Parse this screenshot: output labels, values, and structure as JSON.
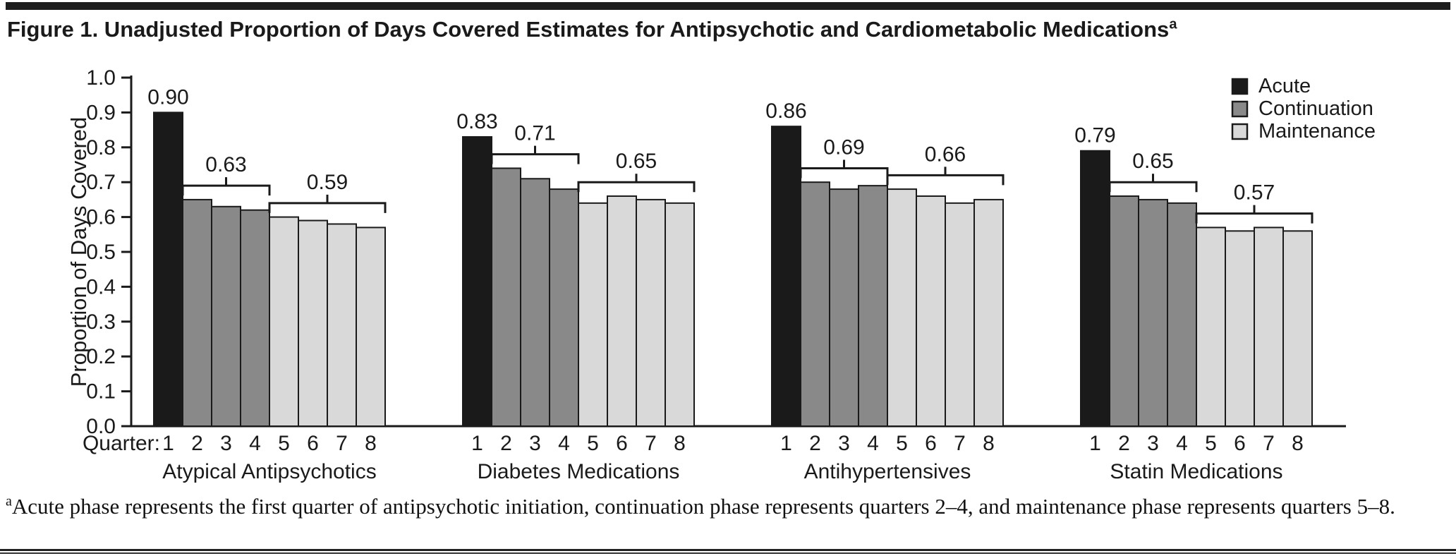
{
  "header": {
    "title": "Figure 1. Unadjusted Proportion of Days Covered Estimates for Antipsychotic and Cardiometabolic Medications",
    "title_superscript": "a"
  },
  "footnote": {
    "marker": "a",
    "text": "Acute phase represents the first quarter of antipsychotic initiation, continuation phase represents quarters 2–4, and maintenance phase represents quarters 5–8."
  },
  "chart_data": {
    "type": "bar",
    "title": "Figure 1. Unadjusted Proportion of Days Covered Estimates for Antipsychotic and Cardiometabolic Medications",
    "ylabel": "Proportion of Days Covered",
    "ylim": [
      0.0,
      1.0
    ],
    "yticks": [
      "0.0",
      "0.1",
      "0.2",
      "0.3",
      "0.4",
      "0.5",
      "0.6",
      "0.7",
      "0.8",
      "0.9",
      "1.0"
    ],
    "xaxis_prefix": "Quarter:",
    "quarters": [
      "1",
      "2",
      "3",
      "4",
      "5",
      "6",
      "7",
      "8"
    ],
    "grid": false,
    "legend_position": "top-right",
    "legend": [
      {
        "label": "Acute",
        "color": "#1a1a1a"
      },
      {
        "label": "Continuation",
        "color": "#898989"
      },
      {
        "label": "Maintenance",
        "color": "#d9d9d9"
      }
    ],
    "phase_of_quarter": [
      "acute",
      "continuation",
      "continuation",
      "continuation",
      "maintenance",
      "maintenance",
      "maintenance",
      "maintenance"
    ],
    "groups": [
      {
        "label": "Atypical Antipsychotics",
        "values": [
          0.9,
          0.65,
          0.63,
          0.62,
          0.6,
          0.59,
          0.58,
          0.57
        ],
        "acute_label": "0.90",
        "brackets": [
          {
            "span": [
              2,
              4
            ],
            "label": "0.63"
          },
          {
            "span": [
              5,
              8
            ],
            "label": "0.59"
          }
        ]
      },
      {
        "label": "Diabetes Medications",
        "values": [
          0.83,
          0.74,
          0.71,
          0.68,
          0.64,
          0.66,
          0.65,
          0.64
        ],
        "acute_label": "0.83",
        "brackets": [
          {
            "span": [
              2,
              4
            ],
            "label": "0.71"
          },
          {
            "span": [
              5,
              8
            ],
            "label": "0.65"
          }
        ]
      },
      {
        "label": "Antihypertensives",
        "values": [
          0.86,
          0.7,
          0.68,
          0.69,
          0.68,
          0.66,
          0.64,
          0.65
        ],
        "acute_label": "0.86",
        "brackets": [
          {
            "span": [
              2,
              4
            ],
            "label": "0.69"
          },
          {
            "span": [
              5,
              8
            ],
            "label": "0.66"
          }
        ]
      },
      {
        "label": "Statin Medications",
        "values": [
          0.79,
          0.66,
          0.65,
          0.64,
          0.57,
          0.56,
          0.57,
          0.56
        ],
        "acute_label": "0.79",
        "brackets": [
          {
            "span": [
              2,
              4
            ],
            "label": "0.65"
          },
          {
            "span": [
              5,
              8
            ],
            "label": "0.57"
          }
        ]
      }
    ],
    "colors": {
      "axis": "#1a1a1a",
      "text": "#1a1a1a",
      "bar_border": "#1a1a1a"
    }
  }
}
